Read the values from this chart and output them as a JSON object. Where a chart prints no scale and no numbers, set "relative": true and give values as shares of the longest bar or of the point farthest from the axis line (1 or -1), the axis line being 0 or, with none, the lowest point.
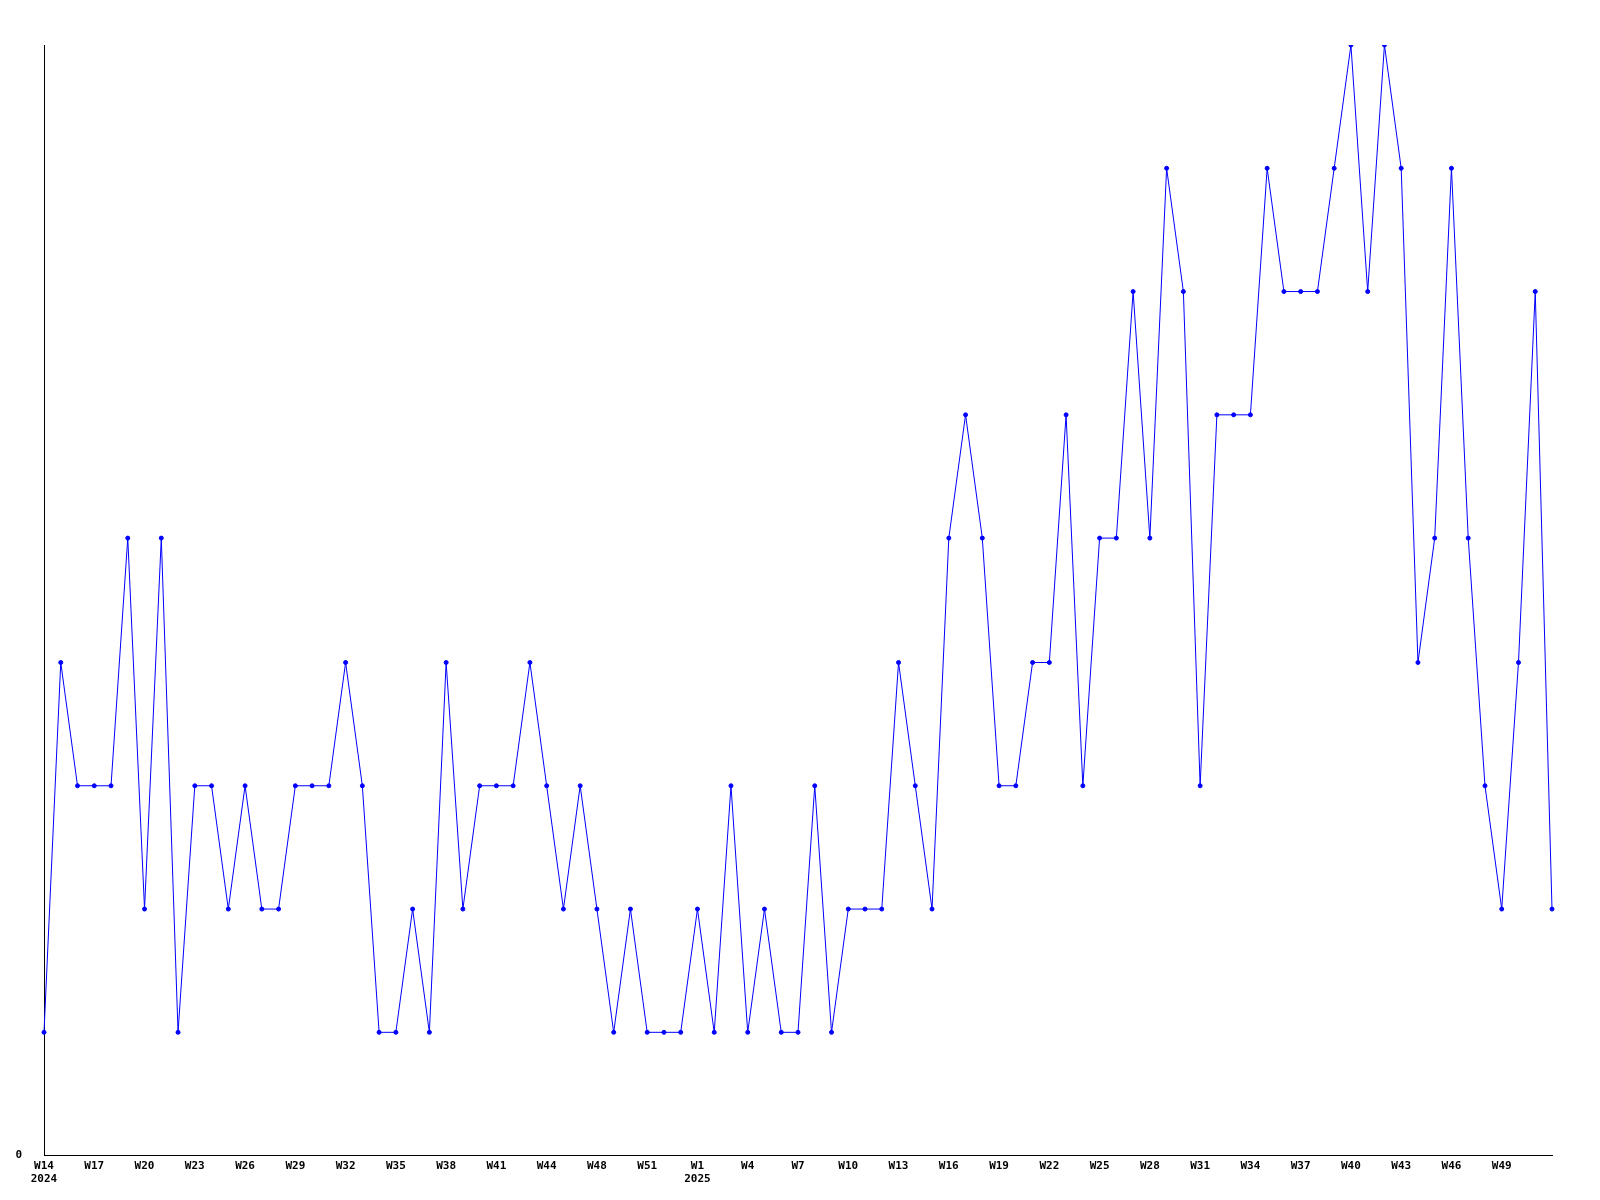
{
  "chart_data": {
    "type": "line",
    "relative": true,
    "color": "#0000ff",
    "marker": "circle",
    "grid": false,
    "legend": false,
    "annotations": [
      "0"
    ],
    "categories": [
      "W14\n2024",
      null,
      null,
      "W17",
      null,
      null,
      "W20",
      null,
      null,
      "W23",
      null,
      null,
      "W26",
      null,
      null,
      "W29",
      null,
      null,
      "W32",
      null,
      null,
      "W35",
      null,
      null,
      "W38",
      null,
      null,
      "W41",
      null,
      null,
      "W44",
      null,
      null,
      "W48",
      null,
      null,
      "W51",
      null,
      null,
      "W1\n2025",
      null,
      null,
      "W4",
      null,
      null,
      "W7",
      null,
      null,
      "W10",
      null,
      null,
      "W13",
      null,
      null,
      "W16",
      null,
      null,
      "W19",
      null,
      null,
      "W22",
      null,
      null,
      "W25",
      null,
      null,
      "W28",
      null,
      null,
      "W31",
      null,
      null,
      "W34",
      null,
      null,
      "W37",
      null,
      null,
      "W40",
      null,
      null,
      "W43",
      null,
      null,
      "W46",
      null,
      null,
      "W49",
      null,
      null,
      null
    ],
    "values": [
      0.111,
      0.444,
      0.333,
      0.333,
      0.333,
      0.556,
      0.222,
      0.556,
      0.111,
      0.333,
      0.333,
      0.222,
      0.333,
      0.222,
      0.222,
      0.333,
      0.333,
      0.333,
      0.444,
      0.333,
      0.111,
      0.111,
      0.222,
      0.111,
      0.444,
      0.222,
      0.333,
      0.333,
      0.333,
      0.444,
      0.333,
      0.222,
      0.333,
      0.222,
      0.111,
      0.222,
      0.111,
      0.111,
      0.111,
      0.222,
      0.111,
      0.333,
      0.111,
      0.222,
      0.111,
      0.111,
      0.333,
      0.111,
      0.222,
      0.222,
      0.222,
      0.444,
      0.333,
      0.222,
      0.556,
      0.667,
      0.556,
      0.333,
      0.333,
      0.444,
      0.444,
      0.667,
      0.333,
      0.556,
      0.556,
      0.778,
      0.556,
      0.889,
      0.778,
      0.333,
      0.667,
      0.667,
      0.667,
      0.889,
      0.778,
      0.778,
      0.778,
      0.889,
      1,
      0.778,
      1,
      0.889,
      0.444,
      0.556,
      0.889,
      0.556,
      0.333,
      0.222,
      0.444,
      0.778,
      0.222
    ]
  }
}
